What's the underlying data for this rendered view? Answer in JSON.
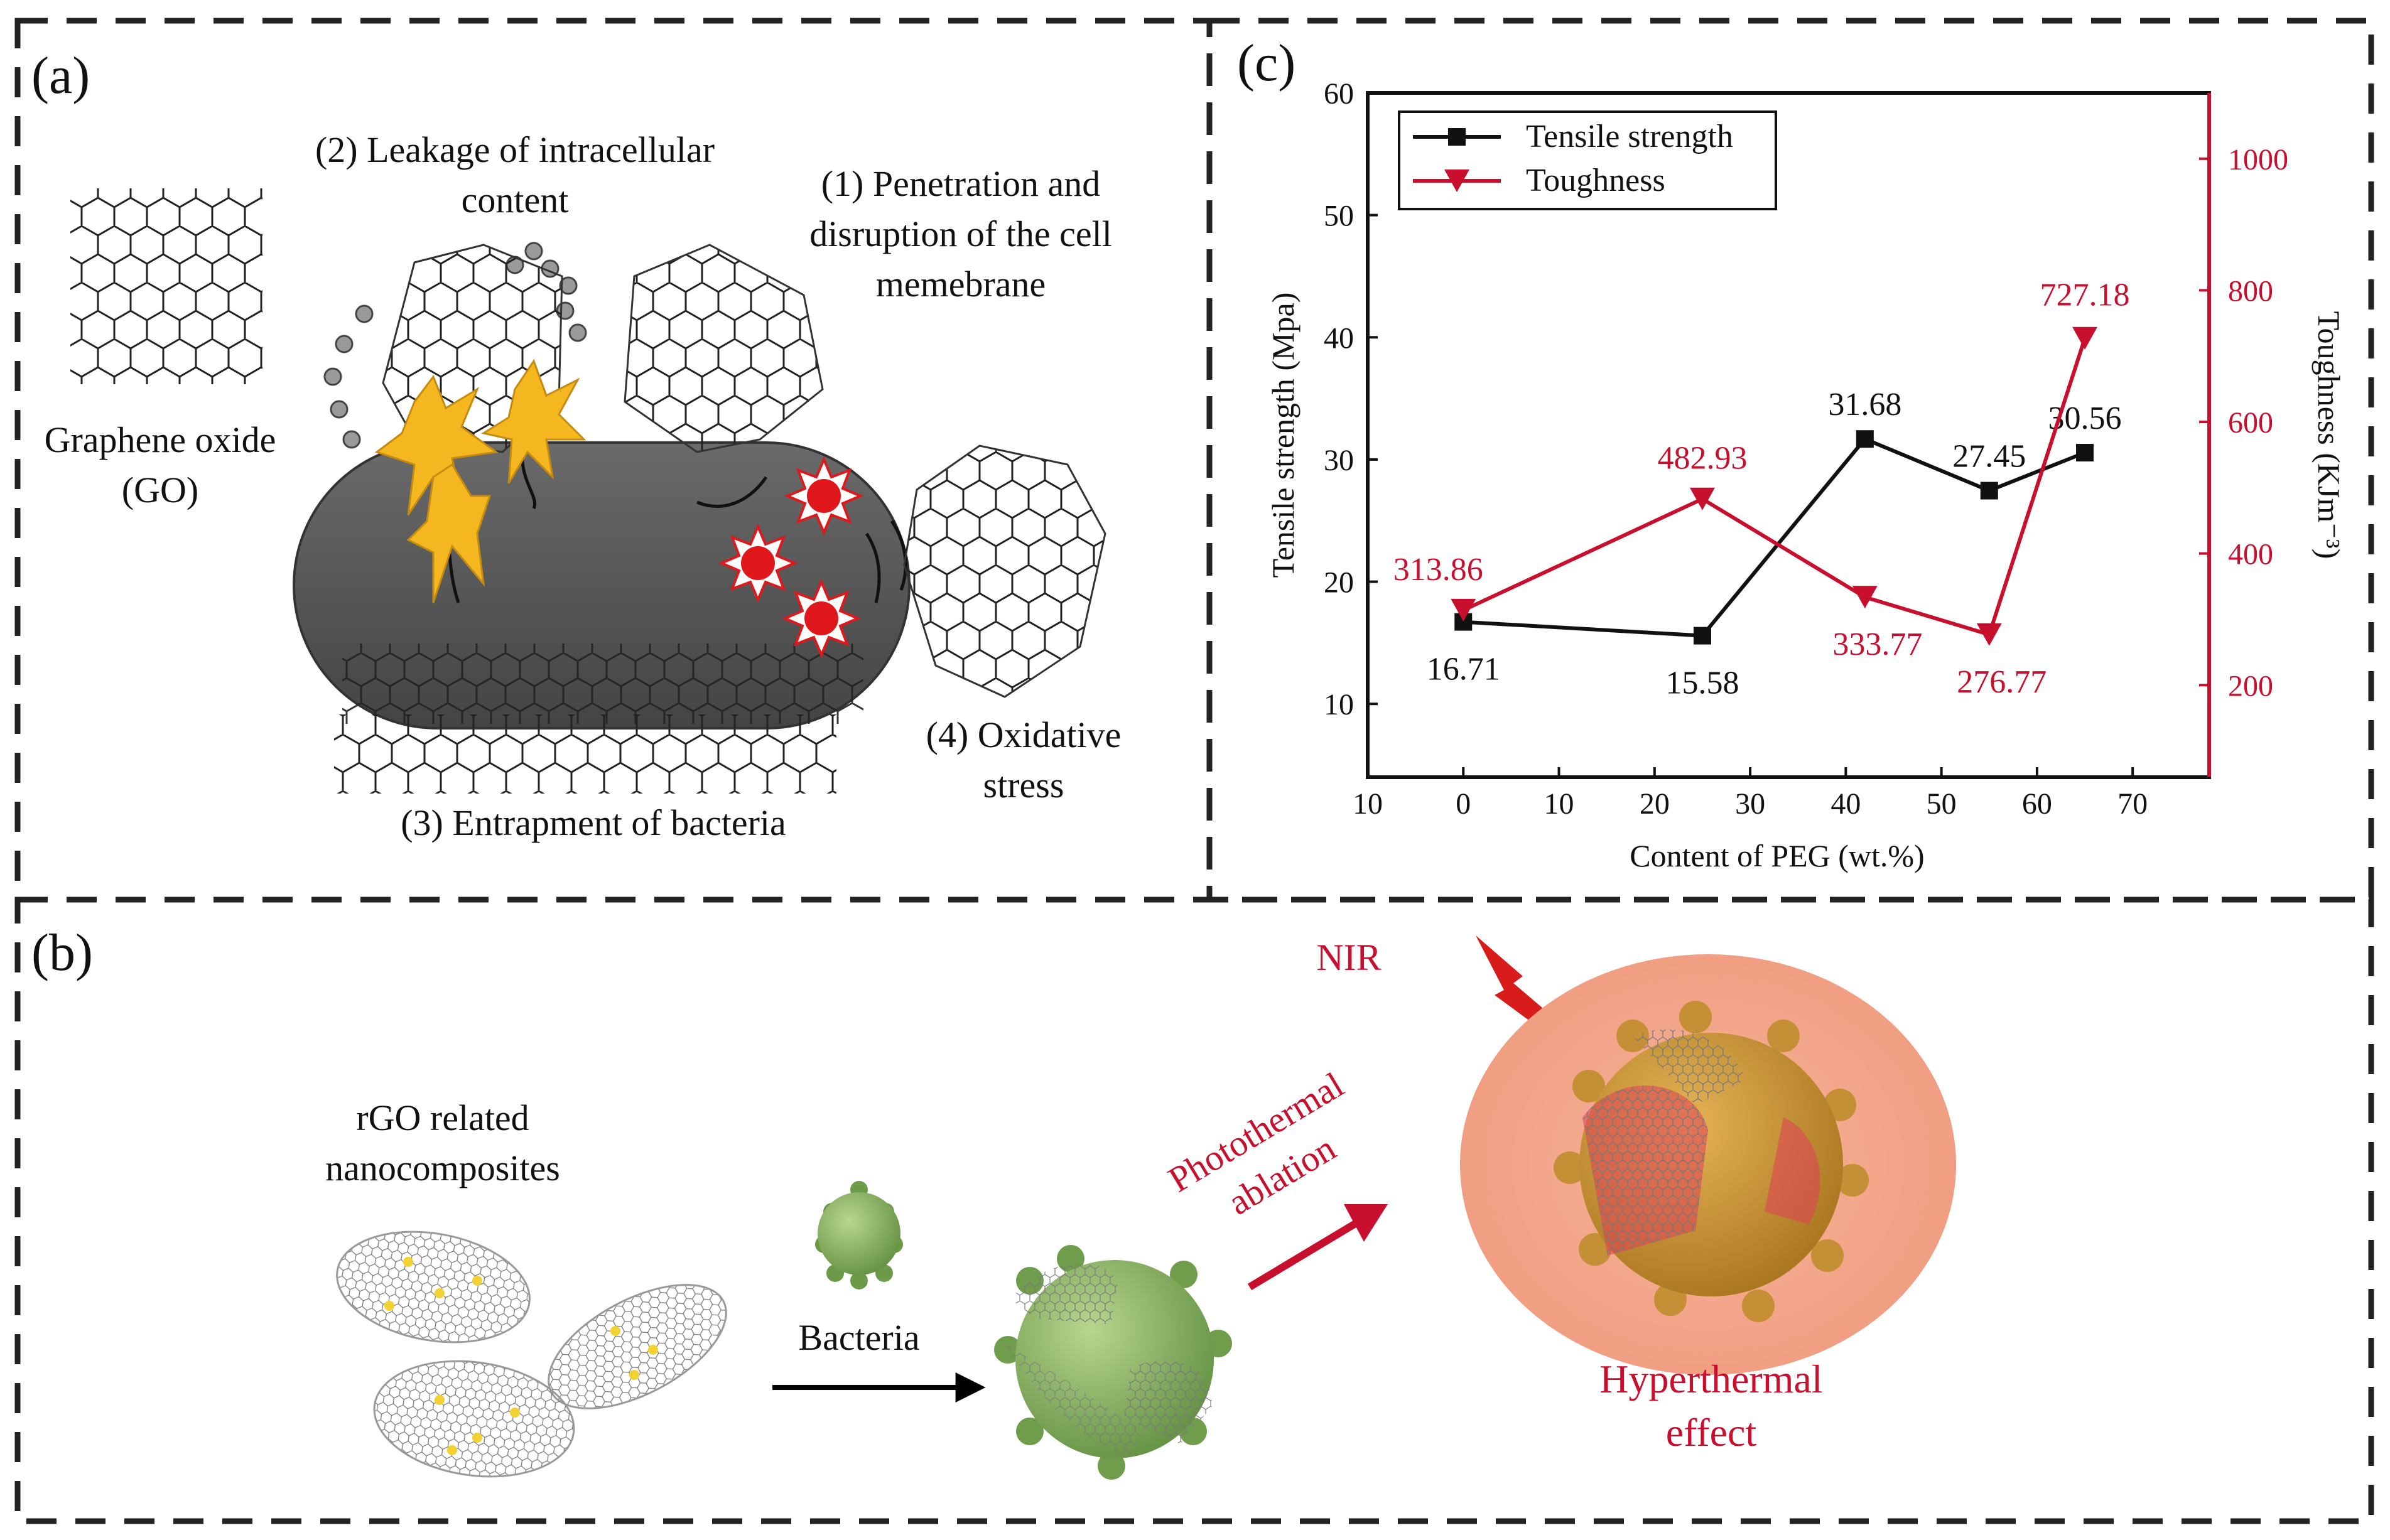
{
  "panels": {
    "a": {
      "label": "(a)",
      "go_label": [
        "Graphene oxide",
        "(GO)"
      ],
      "mech1": [
        "(1) Penetration and",
        "disruption of the cell",
        "memebrane"
      ],
      "mech2": [
        "(2) Leakage of intracellular",
        "content"
      ],
      "mech3": "(3) Entrapment of bacteria",
      "mech4": [
        "(4) Oxidative",
        "stress"
      ]
    },
    "b": {
      "label": "(b)",
      "rgo_label": [
        "rGO related",
        "nanocomposites"
      ],
      "bacteria_label": "Bacteria",
      "photothermal_label": [
        "Photothermal",
        "ablation"
      ],
      "nir_label": "NIR",
      "hyper_label": [
        "Hyperthermal",
        "effect"
      ]
    },
    "c": {
      "label": "(c)"
    }
  },
  "colors": {
    "tensile": "#111111",
    "toughness": "#c8102e",
    "cell_body": "#5a5a5a",
    "spark": "#f4b71f",
    "ros": "#e0181b",
    "bacteria_green": "#8fb56a",
    "halo": "#f3a48a"
  },
  "chart_data": {
    "type": "line",
    "xlabel": "Content of PEG (wt.%)",
    "ylabel_left": "Tensile strength (Mpa)",
    "ylabel_right": "Toughness (KJm⁻³)",
    "x_ticks": [
      "10",
      "0",
      "10",
      "20",
      "30",
      "40",
      "50",
      "60",
      "70"
    ],
    "y_left_ticks": [
      10,
      20,
      30,
      40,
      50,
      60
    ],
    "y_right_ticks": [
      200,
      400,
      600,
      800,
      1000
    ],
    "y_left_range": [
      4,
      60
    ],
    "y_right_range": [
      60,
      1100
    ],
    "legend_position": "top-left",
    "series": [
      {
        "name": "Tensile strength",
        "axis": "left",
        "marker": "square",
        "points": [
          {
            "x": 0,
            "y": 16.71,
            "label": "16.71"
          },
          {
            "x": 25,
            "y": 15.58,
            "label": "15.58"
          },
          {
            "x": 42,
            "y": 31.68,
            "label": "31.68"
          },
          {
            "x": 55,
            "y": 27.45,
            "label": "27.45"
          },
          {
            "x": 65,
            "y": 30.56,
            "label": "30.56"
          }
        ]
      },
      {
        "name": "Toughness",
        "axis": "right",
        "marker": "triangle-down",
        "points": [
          {
            "x": 0,
            "y": 313.86,
            "label": "313.86"
          },
          {
            "x": 25,
            "y": 482.93,
            "label": "482.93"
          },
          {
            "x": 42,
            "y": 333.77,
            "label": "333.77"
          },
          {
            "x": 55,
            "y": 276.77,
            "label": "276.77"
          },
          {
            "x": 65,
            "y": 727.18,
            "label": "727.18"
          }
        ]
      }
    ]
  }
}
